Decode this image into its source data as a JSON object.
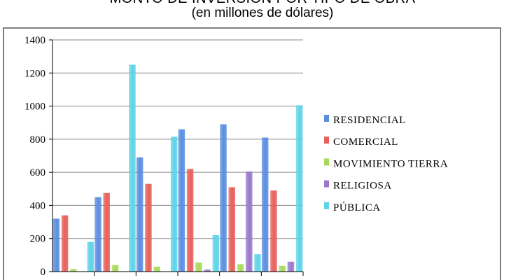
{
  "chart_data": {
    "type": "bar",
    "title": "MONTO DE INVERSIÓN POR TIPO DE OBRA",
    "subtitle": "(en millones de dólares)",
    "categories": [
      "",
      "",
      "",
      "",
      "",
      ""
    ],
    "series": [
      {
        "name": "RESIDENCIAL",
        "color": "#5b8ee0",
        "values": [
          320,
          450,
          690,
          860,
          890,
          810
        ]
      },
      {
        "name": "COMERCIAL",
        "color": "#e8605a",
        "values": [
          340,
          475,
          530,
          620,
          510,
          490
        ]
      },
      {
        "name": "MOVIMIENTO TIERRA",
        "color": "#a8d85a",
        "values": [
          15,
          40,
          30,
          55,
          45,
          35
        ]
      },
      {
        "name": "RELIGIOSA",
        "color": "#9a78cc",
        "values": [
          0,
          0,
          0,
          12,
          605,
          60
        ]
      },
      {
        "name": "PÚBLICA",
        "color": "#5ed4e8",
        "values": [
          180,
          1250,
          815,
          220,
          105,
          1005
        ]
      }
    ],
    "ylim": [
      0,
      1400
    ],
    "yticks": [
      0,
      200,
      400,
      600,
      800,
      1000,
      1200,
      1400
    ],
    "xlabel": "",
    "ylabel": "",
    "grid": true,
    "legend": "right"
  }
}
